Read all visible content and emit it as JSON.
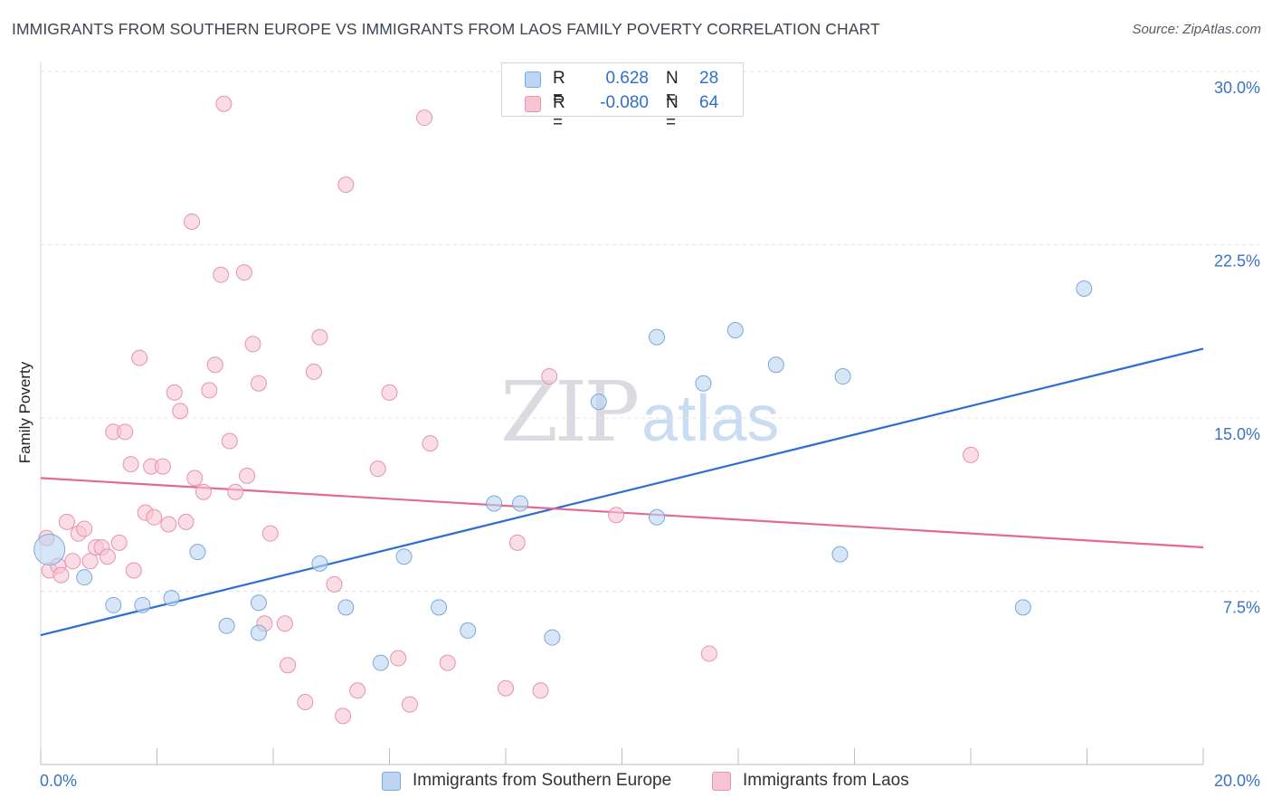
{
  "header": {
    "title": "IMMIGRANTS FROM SOUTHERN EUROPE VS IMMIGRANTS FROM LAOS FAMILY POVERTY CORRELATION CHART",
    "source": "Source: ZipAtlas.com"
  },
  "watermark": {
    "zip": "ZIP",
    "atlas": "atlas"
  },
  "legend": {
    "rows": [
      {
        "r_label": "R =",
        "r_value": "0.628",
        "n_label": "N =",
        "n_value": "28"
      },
      {
        "r_label": "R =",
        "r_value": "-0.080",
        "n_label": "N =",
        "n_value": "64"
      }
    ]
  },
  "colors": {
    "blue_fill": "#bcd5f2",
    "blue_stroke": "#7aa8dd",
    "blue_line": "#2c6fd1",
    "pink_fill": "#f7c4d3",
    "pink_stroke": "#e892ad",
    "pink_line": "#e26a94",
    "tick_label": "#3a72c8",
    "grid": "#e3e3e3"
  },
  "chart_data": {
    "type": "scatter",
    "title": "IMMIGRANTS FROM SOUTHERN EUROPE VS IMMIGRANTS FROM LAOS FAMILY POVERTY CORRELATION CHART",
    "xlabel": "",
    "ylabel": "Family Poverty",
    "xlim": [
      0,
      20
    ],
    "ylim": [
      0,
      30
    ],
    "y_ticks": [
      7.5,
      15.0,
      22.5,
      30.0
    ],
    "y_tick_labels": [
      "7.5%",
      "15.0%",
      "22.5%",
      "30.0%"
    ],
    "x_tick_labels": [
      "0.0%",
      "20.0%"
    ],
    "grid": true,
    "legend_position": "top-center",
    "series": [
      {
        "name": "Immigrants from Southern Europe",
        "color": "blue",
        "r": 0.628,
        "n": 28,
        "trend": {
          "x": [
            0,
            20
          ],
          "y": [
            5.6,
            18.0
          ]
        },
        "points": [
          {
            "x": 0.15,
            "y": 9.3,
            "big": true
          },
          {
            "x": 0.75,
            "y": 8.1
          },
          {
            "x": 1.25,
            "y": 6.9
          },
          {
            "x": 1.75,
            "y": 6.9
          },
          {
            "x": 2.25,
            "y": 7.2
          },
          {
            "x": 2.7,
            "y": 9.2
          },
          {
            "x": 3.2,
            "y": 6.0
          },
          {
            "x": 3.75,
            "y": 7.0
          },
          {
            "x": 3.75,
            "y": 5.7
          },
          {
            "x": 4.8,
            "y": 8.7
          },
          {
            "x": 5.25,
            "y": 6.8
          },
          {
            "x": 5.85,
            "y": 4.4
          },
          {
            "x": 6.25,
            "y": 9.0
          },
          {
            "x": 6.85,
            "y": 6.8
          },
          {
            "x": 7.35,
            "y": 5.8
          },
          {
            "x": 7.8,
            "y": 11.3
          },
          {
            "x": 8.25,
            "y": 11.3
          },
          {
            "x": 8.8,
            "y": 5.5
          },
          {
            "x": 9.6,
            "y": 15.7
          },
          {
            "x": 10.6,
            "y": 10.7
          },
          {
            "x": 10.6,
            "y": 18.5
          },
          {
            "x": 11.4,
            "y": 16.5
          },
          {
            "x": 11.95,
            "y": 18.8
          },
          {
            "x": 12.65,
            "y": 17.3
          },
          {
            "x": 13.75,
            "y": 9.1
          },
          {
            "x": 13.8,
            "y": 16.8
          },
          {
            "x": 16.9,
            "y": 6.8
          },
          {
            "x": 17.95,
            "y": 20.6
          }
        ]
      },
      {
        "name": "Immigrants from Laos",
        "color": "pink",
        "r": -0.08,
        "n": 64,
        "trend": {
          "x": [
            0,
            20
          ],
          "y": [
            12.4,
            9.4
          ]
        },
        "points": [
          {
            "x": 0.1,
            "y": 9.8
          },
          {
            "x": 0.15,
            "y": 8.4
          },
          {
            "x": 0.3,
            "y": 8.6
          },
          {
            "x": 0.35,
            "y": 8.2
          },
          {
            "x": 0.45,
            "y": 10.5
          },
          {
            "x": 0.55,
            "y": 8.8
          },
          {
            "x": 0.65,
            "y": 10.0
          },
          {
            "x": 0.75,
            "y": 10.2
          },
          {
            "x": 0.85,
            "y": 8.8
          },
          {
            "x": 0.95,
            "y": 9.4
          },
          {
            "x": 1.05,
            "y": 9.4
          },
          {
            "x": 1.15,
            "y": 9.0
          },
          {
            "x": 1.25,
            "y": 14.4
          },
          {
            "x": 1.35,
            "y": 9.6
          },
          {
            "x": 1.45,
            "y": 14.4
          },
          {
            "x": 1.55,
            "y": 13.0
          },
          {
            "x": 1.6,
            "y": 8.4
          },
          {
            "x": 1.7,
            "y": 17.6
          },
          {
            "x": 1.8,
            "y": 10.9
          },
          {
            "x": 1.9,
            "y": 12.9
          },
          {
            "x": 1.95,
            "y": 10.7
          },
          {
            "x": 2.1,
            "y": 12.9
          },
          {
            "x": 2.2,
            "y": 10.4
          },
          {
            "x": 2.3,
            "y": 16.1
          },
          {
            "x": 2.4,
            "y": 15.3
          },
          {
            "x": 2.5,
            "y": 10.5
          },
          {
            "x": 2.6,
            "y": 23.5
          },
          {
            "x": 2.65,
            "y": 12.4
          },
          {
            "x": 2.8,
            "y": 11.8
          },
          {
            "x": 2.9,
            "y": 16.2
          },
          {
            "x": 3.0,
            "y": 17.3
          },
          {
            "x": 3.1,
            "y": 21.2
          },
          {
            "x": 3.15,
            "y": 28.6
          },
          {
            "x": 3.25,
            "y": 14.0
          },
          {
            "x": 3.35,
            "y": 11.8
          },
          {
            "x": 3.5,
            "y": 21.3
          },
          {
            "x": 3.55,
            "y": 12.5
          },
          {
            "x": 3.65,
            "y": 18.2
          },
          {
            "x": 3.75,
            "y": 16.5
          },
          {
            "x": 3.85,
            "y": 6.1
          },
          {
            "x": 3.95,
            "y": 10.0
          },
          {
            "x": 4.2,
            "y": 6.1
          },
          {
            "x": 4.25,
            "y": 4.3
          },
          {
            "x": 4.55,
            "y": 2.7
          },
          {
            "x": 4.7,
            "y": 17.0
          },
          {
            "x": 4.8,
            "y": 18.5
          },
          {
            "x": 5.05,
            "y": 7.8
          },
          {
            "x": 5.2,
            "y": 2.1
          },
          {
            "x": 5.25,
            "y": 25.1
          },
          {
            "x": 5.45,
            "y": 3.2
          },
          {
            "x": 5.8,
            "y": 12.8
          },
          {
            "x": 6.0,
            "y": 16.1
          },
          {
            "x": 6.15,
            "y": 4.6
          },
          {
            "x": 6.35,
            "y": 2.6
          },
          {
            "x": 6.6,
            "y": 28.0
          },
          {
            "x": 6.7,
            "y": 13.9
          },
          {
            "x": 7.0,
            "y": 4.4
          },
          {
            "x": 8.0,
            "y": 3.3
          },
          {
            "x": 8.2,
            "y": 9.6
          },
          {
            "x": 8.6,
            "y": 3.2
          },
          {
            "x": 8.75,
            "y": 16.8
          },
          {
            "x": 9.9,
            "y": 10.8
          },
          {
            "x": 11.5,
            "y": 4.8
          },
          {
            "x": 16.0,
            "y": 13.4
          }
        ]
      }
    ]
  },
  "bottom_legend": {
    "items": [
      {
        "label": "Immigrants from Southern Europe"
      },
      {
        "label": "Immigrants from Laos"
      }
    ]
  }
}
